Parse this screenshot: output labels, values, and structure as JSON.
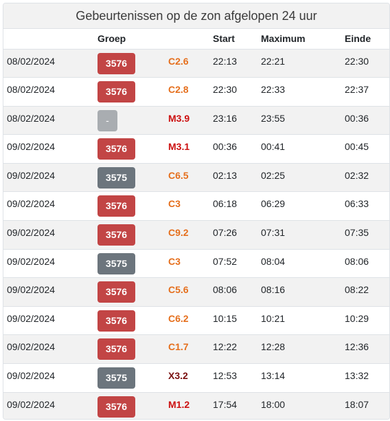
{
  "header": {
    "title": "Gebeurtenissen op de zon afgelopen 24 uur"
  },
  "columns": {
    "date": "",
    "group": "Groep",
    "class": "",
    "start": "Start",
    "maximum": "Maximum",
    "end": "Einde"
  },
  "colors": {
    "badge_red": "#c24545",
    "badge_grey": "#6c757d",
    "badge_light": "#a9adb1",
    "class_c": "#e56f1d",
    "class_m": "#cc0f0f",
    "class_x": "#7a0f0f"
  },
  "rows": [
    {
      "date": "08/02/2024",
      "group": "3576",
      "badge": "red",
      "class": "C2.6",
      "level": "c",
      "start": "22:13",
      "max": "22:21",
      "end": "22:30"
    },
    {
      "date": "08/02/2024",
      "group": "3576",
      "badge": "red",
      "class": "C2.8",
      "level": "c",
      "start": "22:30",
      "max": "22:33",
      "end": "22:37"
    },
    {
      "date": "08/02/2024",
      "group": "-",
      "badge": "light",
      "class": "M3.9",
      "level": "m",
      "start": "23:16",
      "max": "23:55",
      "end": "00:36"
    },
    {
      "date": "09/02/2024",
      "group": "3576",
      "badge": "red",
      "class": "M3.1",
      "level": "m",
      "start": "00:36",
      "max": "00:41",
      "end": "00:45"
    },
    {
      "date": "09/02/2024",
      "group": "3575",
      "badge": "grey",
      "class": "C6.5",
      "level": "c",
      "start": "02:13",
      "max": "02:25",
      "end": "02:32"
    },
    {
      "date": "09/02/2024",
      "group": "3576",
      "badge": "red",
      "class": "C3",
      "level": "c",
      "start": "06:18",
      "max": "06:29",
      "end": "06:33"
    },
    {
      "date": "09/02/2024",
      "group": "3576",
      "badge": "red",
      "class": "C9.2",
      "level": "c",
      "start": "07:26",
      "max": "07:31",
      "end": "07:35"
    },
    {
      "date": "09/02/2024",
      "group": "3575",
      "badge": "grey",
      "class": "C3",
      "level": "c",
      "start": "07:52",
      "max": "08:04",
      "end": "08:06"
    },
    {
      "date": "09/02/2024",
      "group": "3576",
      "badge": "red",
      "class": "C5.6",
      "level": "c",
      "start": "08:06",
      "max": "08:16",
      "end": "08:22"
    },
    {
      "date": "09/02/2024",
      "group": "3576",
      "badge": "red",
      "class": "C6.2",
      "level": "c",
      "start": "10:15",
      "max": "10:21",
      "end": "10:29"
    },
    {
      "date": "09/02/2024",
      "group": "3576",
      "badge": "red",
      "class": "C1.7",
      "level": "c",
      "start": "12:22",
      "max": "12:28",
      "end": "12:36"
    },
    {
      "date": "09/02/2024",
      "group": "3575",
      "badge": "grey",
      "class": "X3.2",
      "level": "x",
      "start": "12:53",
      "max": "13:14",
      "end": "13:32"
    },
    {
      "date": "09/02/2024",
      "group": "3576",
      "badge": "red",
      "class": "M1.2",
      "level": "m",
      "start": "17:54",
      "max": "18:00",
      "end": "18:07"
    }
  ]
}
